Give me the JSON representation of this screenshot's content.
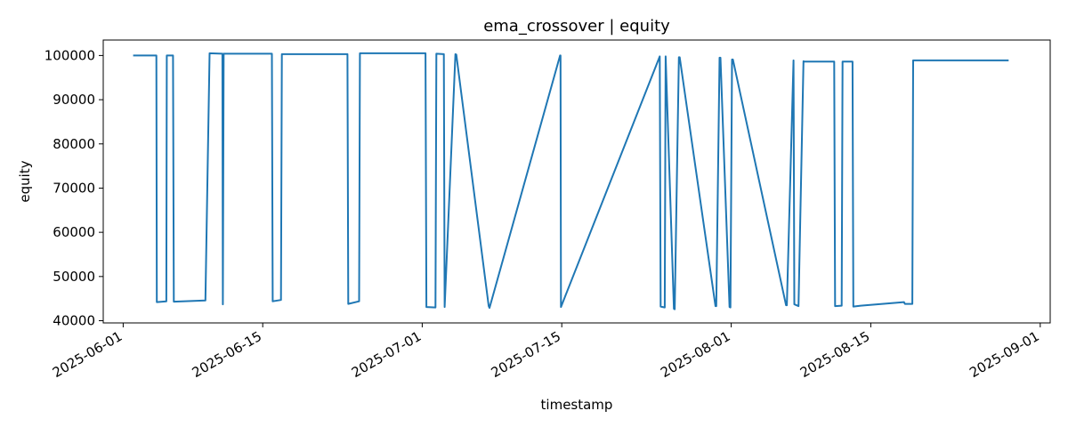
{
  "chart_data": {
    "type": "line",
    "title": "ema_crossover | equity",
    "xlabel": "timestamp",
    "ylabel": "equity",
    "xlim": [
      "2025-05-30",
      "2025-09-02"
    ],
    "ylim": [
      39500,
      103500
    ],
    "x_ticks": [
      "2025-06-01",
      "2025-06-15",
      "2025-07-01",
      "2025-07-15",
      "2025-08-01",
      "2025-08-15",
      "2025-09-01"
    ],
    "y_ticks": [
      40000,
      50000,
      60000,
      70000,
      80000,
      90000,
      100000
    ],
    "grid": false,
    "legend": "none",
    "colors": {
      "line": "#1f77b4",
      "axes": "#000000",
      "background": "#ffffff"
    },
    "series": [
      {
        "x": [
          "2025-06-02T00:00",
          "2025-06-04T08:00",
          "2025-06-04T09:00",
          "2025-06-05T08:00",
          "2025-06-05T09:00",
          "2025-06-06T00:00",
          "2025-06-06T02:00",
          "2025-06-09T06:00",
          "2025-06-09T16:00",
          "2025-06-10T23:00",
          "2025-06-11T00:00",
          "2025-06-11T02:00",
          "2025-06-15T22:00",
          "2025-06-16T00:00",
          "2025-06-16T20:00",
          "2025-06-16T22:00",
          "2025-06-23T12:00",
          "2025-06-23T14:00",
          "2025-06-24T16:00",
          "2025-06-24T18:00",
          "2025-07-01T08:00",
          "2025-07-01T10:00",
          "2025-07-02T08:00",
          "2025-07-02T10:00",
          "2025-07-03T04:00",
          "2025-07-03T06:00",
          "2025-07-04T08:00",
          "2025-07-04T10:00",
          "2025-07-07T16:00",
          "2025-07-07T18:00",
          "2025-07-14T20:00",
          "2025-07-14T21:00",
          "2025-07-14T22:00",
          "2025-07-24T20:00",
          "2025-07-24T22:00",
          "2025-07-25T08:00",
          "2025-07-25T10:00",
          "2025-07-26T06:00",
          "2025-07-26T08:00",
          "2025-07-26T18:00",
          "2025-07-26T20:00",
          "2025-07-30T10:00",
          "2025-07-30T12:00",
          "2025-07-30T20:00",
          "2025-07-30T22:00",
          "2025-07-31T20:00",
          "2025-07-31T22:00",
          "2025-08-01T02:00",
          "2025-08-01T04:00",
          "2025-08-06T12:00",
          "2025-08-06T14:00",
          "2025-08-07T06:00",
          "2025-08-07T08:00",
          "2025-08-07T18:00",
          "2025-08-08T06:00",
          "2025-08-08T08:00",
          "2025-08-11T08:00",
          "2025-08-11T10:00",
          "2025-08-12T02:00",
          "2025-08-12T04:00",
          "2025-08-13T04:00",
          "2025-08-13T06:00",
          "2025-08-14T00:00",
          "2025-08-18T08:00",
          "2025-08-18T10:00",
          "2025-08-19T04:00",
          "2025-08-19T06:00",
          "2025-08-28T20:00"
        ],
        "values": [
          100000,
          100000,
          44200,
          44400,
          100000,
          100000,
          44300,
          44600,
          100500,
          100400,
          43700,
          100400,
          100400,
          44400,
          44700,
          100300,
          100300,
          43800,
          44400,
          100500,
          100500,
          43100,
          43000,
          100400,
          100300,
          43100,
          100300,
          100200,
          43300,
          42900,
          100000,
          100000,
          43100,
          99800,
          43200,
          43000,
          99800,
          42700,
          42600,
          99600,
          99600,
          43300,
          43300,
          99500,
          99500,
          43100,
          43000,
          99100,
          99100,
          43500,
          43500,
          98900,
          43700,
          43300,
          98700,
          98600,
          98600,
          43300,
          43400,
          98600,
          98600,
          43200,
          43400,
          44200,
          43800,
          43800,
          98900,
          98900
        ]
      }
    ]
  }
}
